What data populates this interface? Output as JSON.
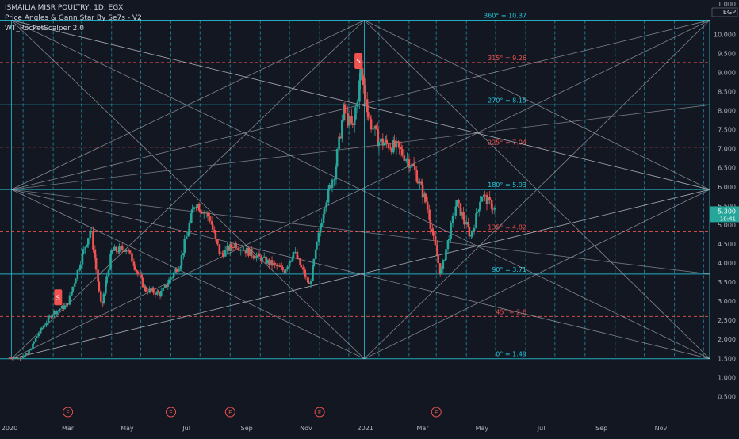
{
  "legend": {
    "symbol": "ISMAILIA MISR POULTRY, 1D, EGX",
    "indicator1": "Price Angles & Gann Star By Se7s - V2",
    "indicator2": "WT_RocketScalper 2.0"
  },
  "chart_data": {
    "type": "candlestick",
    "currency": "EGP",
    "top_tick": "1.000",
    "last_price": "5.300",
    "countdown": "10:41",
    "ylim": [
      0.3,
      10.9
    ],
    "x_range": [
      "2020-01-01",
      "2021-12-31"
    ],
    "y_ticks": [
      "0.500",
      "1.000",
      "1.500",
      "2.000",
      "2.500",
      "3.000",
      "3.500",
      "4.000",
      "4.500",
      "5.000",
      "5.500",
      "6.000",
      "6.500",
      "7.000",
      "7.500",
      "8.000",
      "8.500",
      "9.000",
      "9.500",
      "10.000",
      "10.500"
    ],
    "x_ticks": [
      {
        "label": "2020",
        "date": "2020-01-01"
      },
      {
        "label": "Mar",
        "date": "2020-03-01"
      },
      {
        "label": "May",
        "date": "2020-05-01"
      },
      {
        "label": "Jul",
        "date": "2020-07-01"
      },
      {
        "label": "Sep",
        "date": "2020-09-01"
      },
      {
        "label": "Nov",
        "date": "2020-11-01"
      },
      {
        "label": "2021",
        "date": "2021-01-01"
      },
      {
        "label": "Mar",
        "date": "2021-03-01"
      },
      {
        "label": "May",
        "date": "2021-05-01"
      },
      {
        "label": "Jul",
        "date": "2021-07-01"
      },
      {
        "label": "Sep",
        "date": "2021-09-01"
      },
      {
        "label": "Nov",
        "date": "2021-11-01"
      }
    ],
    "gann_levels": [
      {
        "label": "0° = 1.49",
        "value": 1.49,
        "color": "#26c6da"
      },
      {
        "label": "45° = 2.6",
        "value": 2.6,
        "color": "#ef5350"
      },
      {
        "label": "90° = 3.71",
        "value": 3.71,
        "color": "#26c6da"
      },
      {
        "label": "135° = 4.82",
        "value": 4.82,
        "color": "#ef5350"
      },
      {
        "label": "180° = 5.93",
        "value": 5.93,
        "color": "#26c6da"
      },
      {
        "label": "225° = 7.04",
        "value": 7.04,
        "color": "#ef5350"
      },
      {
        "label": "270° = 8.15",
        "value": 8.15,
        "color": "#26c6da"
      },
      {
        "label": "315° = 9.26",
        "value": 9.26,
        "color": "#ef5350"
      },
      {
        "label": "360° = 10.37",
        "value": 10.37,
        "color": "#26c6da"
      }
    ],
    "gann_star_points": [
      {
        "date": "2020-01-03",
        "value": 1.49
      },
      {
        "date": "2020-01-03",
        "value": 5.93
      },
      {
        "date": "2020-01-03",
        "value": 10.37
      },
      {
        "date": "2020-12-31",
        "value": 10.37
      },
      {
        "date": "2020-12-31",
        "value": 1.49
      },
      {
        "date": "2021-12-31",
        "value": 10.37
      },
      {
        "date": "2021-12-31",
        "value": 5.93
      },
      {
        "date": "2021-12-31",
        "value": 1.49
      }
    ],
    "earnings_dates": [
      "2020-03-01",
      "2020-06-15",
      "2020-08-15",
      "2020-11-15",
      "2021-03-15"
    ],
    "earnings_label": "E",
    "signal_labels": [
      {
        "date": "2020-02-20",
        "value": 2.85,
        "text": "S"
      },
      {
        "date": "2020-12-25",
        "value": 9.05,
        "text": "S"
      }
    ],
    "price_path": [
      {
        "date": "2020-01-01",
        "value": 1.52
      },
      {
        "date": "2020-01-10",
        "value": 1.5
      },
      {
        "date": "2020-01-20",
        "value": 1.6
      },
      {
        "date": "2020-02-01",
        "value": 2.2
      },
      {
        "date": "2020-02-15",
        "value": 2.7
      },
      {
        "date": "2020-03-01",
        "value": 2.9
      },
      {
        "date": "2020-03-15",
        "value": 4.1
      },
      {
        "date": "2020-03-25",
        "value": 4.9
      },
      {
        "date": "2020-04-05",
        "value": 2.8
      },
      {
        "date": "2020-04-15",
        "value": 4.3
      },
      {
        "date": "2020-05-01",
        "value": 4.4
      },
      {
        "date": "2020-05-20",
        "value": 3.3
      },
      {
        "date": "2020-06-05",
        "value": 3.2
      },
      {
        "date": "2020-06-25",
        "value": 4.0
      },
      {
        "date": "2020-07-10",
        "value": 5.6
      },
      {
        "date": "2020-07-25",
        "value": 5.2
      },
      {
        "date": "2020-08-05",
        "value": 4.2
      },
      {
        "date": "2020-08-20",
        "value": 4.5
      },
      {
        "date": "2020-09-10",
        "value": 4.2
      },
      {
        "date": "2020-09-25",
        "value": 4.0
      },
      {
        "date": "2020-10-10",
        "value": 3.8
      },
      {
        "date": "2020-10-20",
        "value": 4.3
      },
      {
        "date": "2020-11-05",
        "value": 3.4
      },
      {
        "date": "2020-11-20",
        "value": 5.5
      },
      {
        "date": "2020-12-01",
        "value": 6.4
      },
      {
        "date": "2020-12-10",
        "value": 8.0
      },
      {
        "date": "2020-12-20",
        "value": 7.5
      },
      {
        "date": "2020-12-28",
        "value": 9.1
      },
      {
        "date": "2021-01-05",
        "value": 7.8
      },
      {
        "date": "2021-01-15",
        "value": 7.2
      },
      {
        "date": "2021-02-05",
        "value": 7.0
      },
      {
        "date": "2021-02-20",
        "value": 6.5
      },
      {
        "date": "2021-03-05",
        "value": 5.6
      },
      {
        "date": "2021-03-20",
        "value": 3.7
      },
      {
        "date": "2021-04-05",
        "value": 5.6
      },
      {
        "date": "2021-04-20",
        "value": 4.7
      },
      {
        "date": "2021-05-01",
        "value": 5.8
      },
      {
        "date": "2021-05-15",
        "value": 5.4
      }
    ]
  }
}
